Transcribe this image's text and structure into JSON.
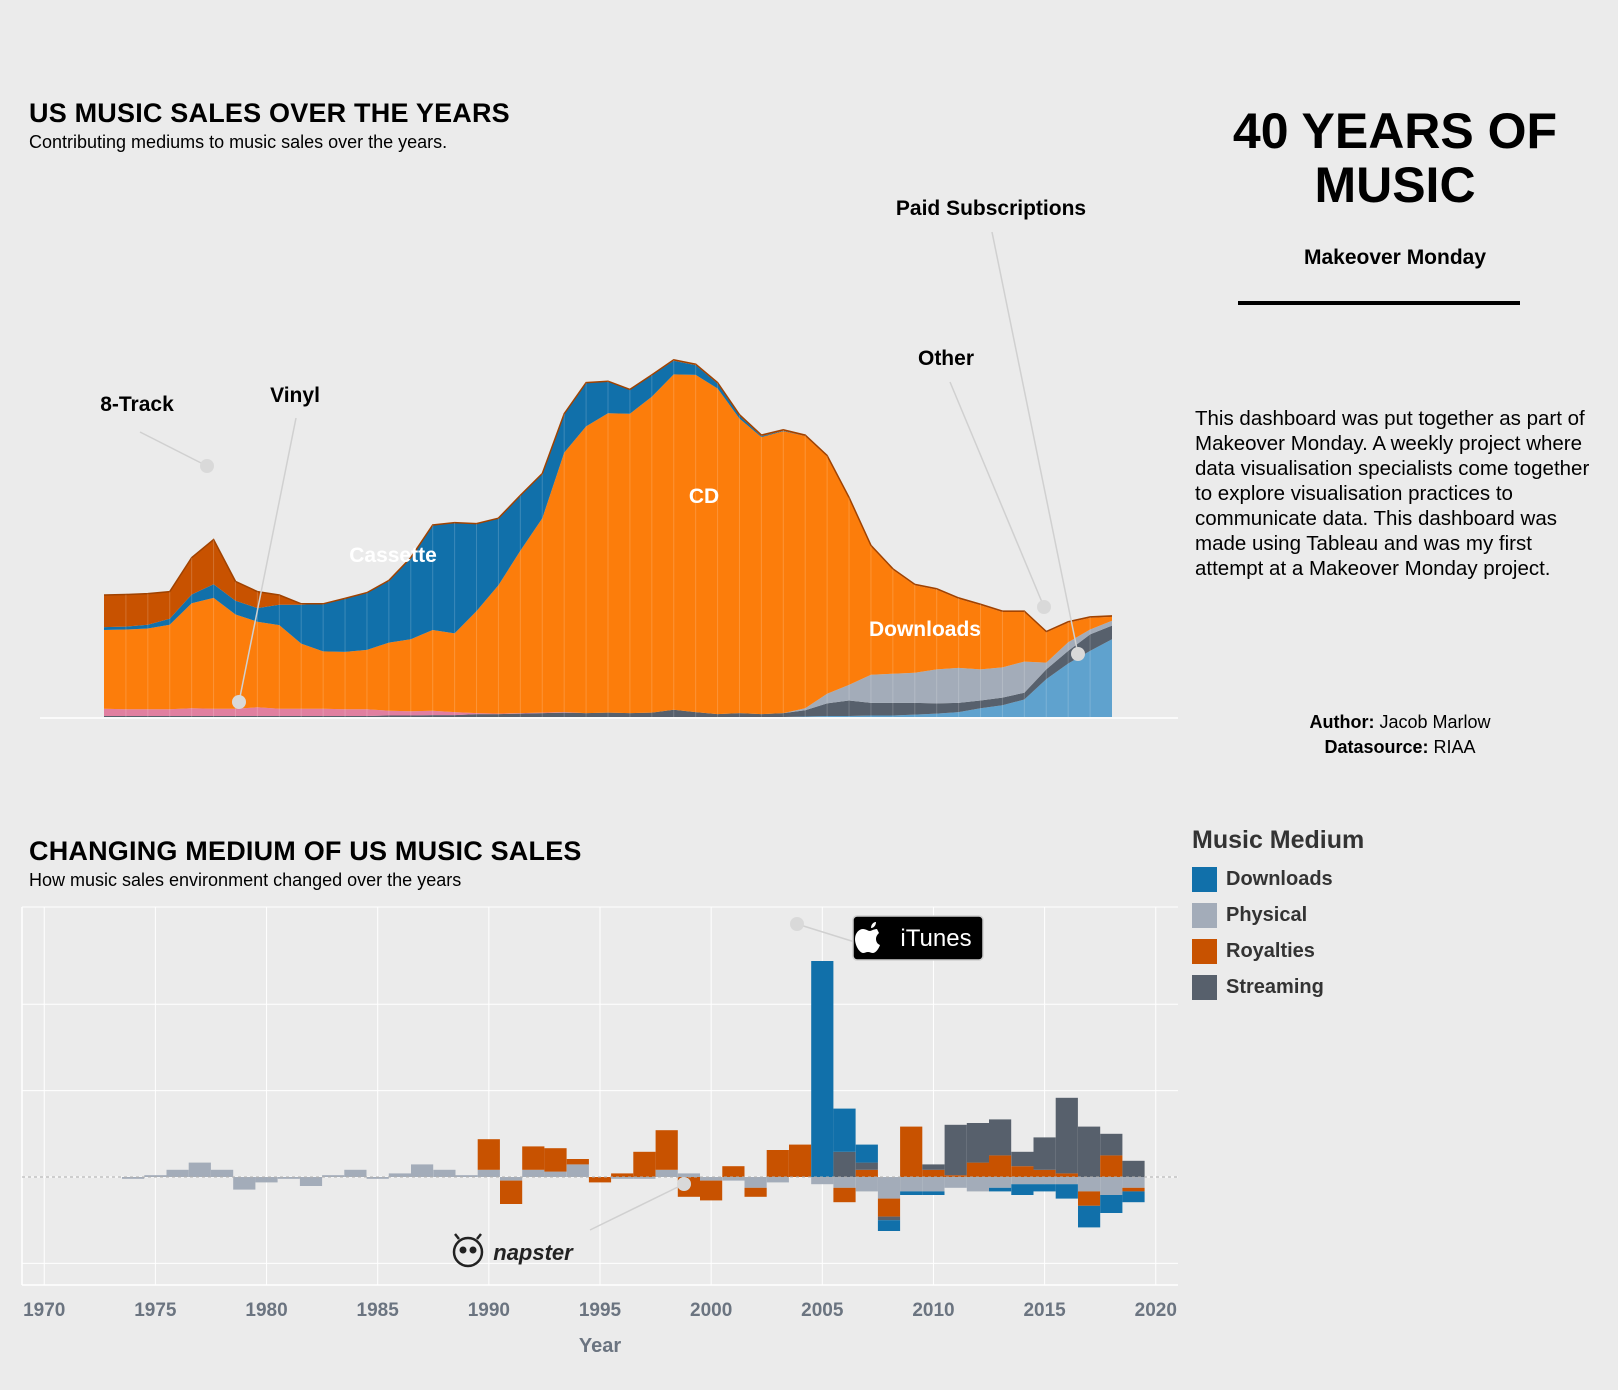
{
  "top": {
    "title": "US MUSIC SALES OVER THE YEARS",
    "subtitle": "Contributing mediums to music sales over the years."
  },
  "bottom": {
    "title": "CHANGING MEDIUM OF US MUSIC SALES",
    "subtitle": "How music sales environment changed over the years"
  },
  "side": {
    "title": "40 YEARS OF MUSIC",
    "subtitle": "Makeover Monday",
    "description": "This dashboard was put together as part of Makeover Monday. A weekly project where data visualisation specialists come together to explore visualisation practices to communicate data. This dashboard was made using Tableau and was my first attempt at a Makeover Monday project.",
    "author_label": "Author:",
    "author": "Jacob Marlow",
    "datasource_label": "Datasource:",
    "datasource": "RIAA"
  },
  "legend": {
    "title": "Music Medium",
    "items": [
      {
        "label": "Downloads",
        "color": "#1170aa"
      },
      {
        "label": "Physical",
        "color": "#a3acb9"
      },
      {
        "label": "Royalties",
        "color": "#c85200"
      },
      {
        "label": "Streaming",
        "color": "#57606c"
      }
    ]
  },
  "logos": {
    "itunes": "iTunes",
    "napster": "napster",
    "itunes_icon": "apple-icon",
    "napster_icon": "napster-cat-icon"
  },
  "chart_data": [
    {
      "type": "area",
      "stacked": true,
      "title": "US MUSIC SALES OVER THE YEARS",
      "subtitle": "Contributing mediums to music sales over the years.",
      "x": [
        1973,
        1974,
        1975,
        1976,
        1977,
        1978,
        1979,
        1980,
        1981,
        1982,
        1983,
        1984,
        1985,
        1986,
        1987,
        1988,
        1989,
        1990,
        1991,
        1992,
        1993,
        1994,
        1995,
        1996,
        1997,
        1998,
        1999,
        2000,
        2001,
        2002,
        2003,
        2004,
        2005,
        2006,
        2007,
        2008,
        2009,
        2010,
        2011,
        2012,
        2013,
        2014,
        2015,
        2016,
        2017,
        2018,
        2019
      ],
      "series": [
        {
          "name": "Paid Subscriptions",
          "color": "#5fa2ce",
          "values": [
            0,
            0,
            0,
            0,
            0,
            0,
            0,
            0,
            0,
            0,
            0,
            0,
            0,
            0,
            0,
            0,
            0,
            0,
            0,
            0,
            0,
            0,
            0,
            0,
            0,
            0,
            0,
            0,
            0,
            0,
            0,
            0,
            0.05,
            0.1,
            0.1,
            0.15,
            0.15,
            0.25,
            0.35,
            0.5,
            0.9,
            1.2,
            1.8,
            3.9,
            5.5,
            6.8,
            8.0
          ]
        },
        {
          "name": "Other",
          "color": "#57606c",
          "values": [
            0.1,
            0.1,
            0.1,
            0.1,
            0.1,
            0.1,
            0.1,
            0.1,
            0.1,
            0.1,
            0.1,
            0.1,
            0.1,
            0.15,
            0.15,
            0.2,
            0.2,
            0.3,
            0.3,
            0.35,
            0.4,
            0.45,
            0.4,
            0.45,
            0.4,
            0.45,
            0.75,
            0.5,
            0.3,
            0.4,
            0.3,
            0.4,
            0.65,
            1.3,
            1.6,
            1.3,
            1.3,
            1.2,
            1.05,
            0.95,
            0.8,
            0.8,
            0.7,
            1.0,
            1.3,
            1.7,
            1.4
          ]
        },
        {
          "name": "Downloads",
          "color": "#a3acb9",
          "values": [
            0,
            0,
            0,
            0,
            0,
            0,
            0,
            0,
            0,
            0,
            0,
            0,
            0,
            0,
            0,
            0,
            0,
            0,
            0,
            0,
            0,
            0,
            0,
            0,
            0,
            0,
            0,
            0,
            0,
            0,
            0,
            0,
            0.2,
            1.0,
            1.6,
            2.9,
            3.0,
            3.1,
            3.5,
            3.6,
            3.2,
            3.1,
            3.2,
            0.7,
            0.9,
            0.5,
            0.5
          ]
        },
        {
          "name": "Vinyl",
          "color": "#e17fa0",
          "values": [
            0.75,
            0.7,
            0.7,
            0.7,
            0.8,
            0.75,
            0.75,
            0.9,
            0.75,
            0.75,
            0.75,
            0.7,
            0.7,
            0.5,
            0.45,
            0.45,
            0.3,
            0.1,
            0.05,
            0.05,
            0.05,
            0.05,
            0,
            0,
            0,
            0,
            0,
            0,
            0,
            0,
            0,
            0,
            0,
            0,
            0,
            0,
            0,
            0,
            0,
            0,
            0,
            0,
            0,
            0,
            0,
            0,
            0
          ]
        },
        {
          "name": "CD",
          "color": "#fc7d0b",
          "values": [
            8.1,
            8.2,
            8.3,
            8.7,
            10.8,
            11.4,
            9.7,
            8.8,
            8.6,
            6.7,
            5.9,
            5.9,
            6.1,
            7.0,
            7.4,
            8.3,
            8.1,
            10.5,
            13.2,
            16.7,
            20.0,
            26.7,
            29.5,
            30.8,
            30.8,
            32.5,
            34.5,
            34.7,
            33.5,
            30.3,
            28.5,
            29.0,
            28.0,
            24.4,
            19.2,
            13.2,
            10.7,
            9.0,
            8.2,
            7.1,
            6.6,
            5.7,
            5.1,
            3.1,
            2.0,
            1.2,
            0.4
          ]
        },
        {
          "name": "Cassette",
          "color": "#1170aa",
          "values": [
            0.3,
            0.3,
            0.4,
            0.6,
            0.9,
            1.4,
            1.4,
            1.4,
            2.1,
            4.0,
            4.9,
            5.5,
            5.9,
            6.4,
            8.4,
            10.8,
            11.4,
            9.0,
            6.9,
            5.7,
            4.6,
            4.0,
            4.5,
            3.3,
            2.5,
            2.2,
            1.4,
            1.0,
            0.5,
            0.3,
            0.1,
            0.05,
            0,
            0,
            0,
            0,
            0,
            0,
            0,
            0,
            0,
            0,
            0,
            0,
            0,
            0,
            0
          ]
        },
        {
          "name": "8-Track",
          "color": "#c85200",
          "values": [
            3.3,
            3.3,
            3.2,
            2.8,
            3.8,
            4.6,
            2.0,
            1.7,
            1.0,
            0.1,
            0,
            0,
            0,
            0,
            0,
            0,
            0,
            0,
            0,
            0,
            0,
            0,
            0,
            0,
            0,
            0,
            0,
            0,
            0,
            0,
            0,
            0,
            0,
            0,
            0,
            0,
            0,
            0,
            0,
            0,
            0,
            0,
            0,
            0,
            0,
            0,
            0
          ]
        },
        {
          "name": "Royalties",
          "color": "#c85200",
          "values": [
            0,
            0,
            0,
            0,
            0,
            0,
            0,
            0,
            0,
            0,
            0,
            0,
            0,
            0,
            0,
            0,
            0,
            0,
            0,
            0,
            0,
            0,
            0,
            0,
            0,
            0.05,
            0.1,
            0.1,
            0.1,
            0.1,
            0.1,
            0.1,
            0.1,
            0.1,
            0.1,
            0.1,
            0.1,
            0.1,
            0.1,
            0.1,
            0.1,
            0.1,
            0.1,
            0.1,
            0.1,
            0.1,
            0.1
          ]
        }
      ],
      "annotations": [
        "8-Track",
        "Vinyl",
        "Cassette",
        "CD",
        "Downloads",
        "Other",
        "Paid Subscriptions"
      ],
      "grid": false
    },
    {
      "type": "bar",
      "stacked": true,
      "title": "CHANGING MEDIUM OF US MUSIC SALES",
      "subtitle": "How music sales environment changed over the years",
      "xlabel": "Year",
      "xticks": [
        1970,
        1975,
        1980,
        1985,
        1990,
        1995,
        2000,
        2005,
        2010,
        2015,
        2020
      ],
      "xlim": [
        1969,
        2021
      ],
      "ylim": [
        -25,
        62
      ],
      "grid": true,
      "x": [
        1974,
        1975,
        1976,
        1977,
        1978,
        1979,
        1980,
        1981,
        1982,
        1983,
        1984,
        1985,
        1986,
        1987,
        1988,
        1989,
        1990,
        1991,
        1992,
        1993,
        1994,
        1995,
        1996,
        1997,
        1998,
        1999,
        2000,
        2001,
        2002,
        2003,
        2004,
        2005,
        2006,
        2007,
        2008,
        2009,
        2010,
        2011,
        2012,
        2013,
        2014,
        2015,
        2016,
        2017,
        2018,
        2019
      ],
      "series": [
        {
          "name": "Downloads",
          "color": "#1170aa",
          "values": [
            0,
            0,
            0,
            0,
            0,
            0,
            0,
            0,
            0,
            0,
            0,
            0,
            0,
            0,
            0,
            0,
            0,
            0,
            0,
            0,
            0,
            0,
            0,
            0,
            0,
            0,
            0,
            0,
            0,
            0,
            0,
            60,
            12,
            5,
            -3,
            -1,
            -1,
            0,
            0,
            -1,
            -3,
            -2,
            -4,
            -6,
            -5,
            -3
          ]
        },
        {
          "name": "Physical",
          "color": "#a3acb9",
          "values": [
            -0.5,
            0.5,
            2,
            4,
            2,
            -3.5,
            -1.5,
            -0.5,
            -2.5,
            0.5,
            2,
            -0.5,
            1,
            3.5,
            2,
            0.5,
            2,
            -1,
            2,
            1.5,
            3.5,
            0,
            -0.5,
            -0.5,
            2,
            1,
            -1,
            -1,
            -3,
            -1.5,
            0,
            -2,
            -3,
            -4,
            -6,
            -4,
            -4,
            -3,
            -4,
            -3,
            -2,
            -2,
            -2,
            -4,
            -5,
            -3
          ]
        },
        {
          "name": "Royalties",
          "color": "#c85200",
          "values": [
            0,
            0,
            0,
            0,
            0,
            0,
            0,
            0,
            0,
            0,
            0,
            0,
            0,
            0,
            0,
            0,
            8.5,
            -6.5,
            6.5,
            6.5,
            1.5,
            -1.5,
            1,
            7,
            11,
            -5.5,
            -5.5,
            3,
            -2.5,
            7.5,
            9,
            0,
            -4,
            2,
            -5,
            14,
            2,
            0.5,
            4,
            6,
            3,
            2,
            1,
            -4,
            6,
            -1
          ]
        },
        {
          "name": "Streaming",
          "color": "#57606c",
          "values": [
            0,
            0,
            0,
            0,
            0,
            0,
            0,
            0,
            0,
            0,
            0,
            0,
            0,
            0,
            0,
            0,
            0,
            0,
            0,
            0,
            0,
            0,
            0,
            0,
            0,
            0,
            0,
            0,
            0,
            0,
            0,
            0,
            7,
            2,
            -1,
            0,
            1.5,
            14,
            11,
            10,
            4,
            9,
            21,
            14,
            6,
            4.5
          ]
        }
      ],
      "annotations": [
        "iTunes",
        "napster"
      ]
    }
  ]
}
